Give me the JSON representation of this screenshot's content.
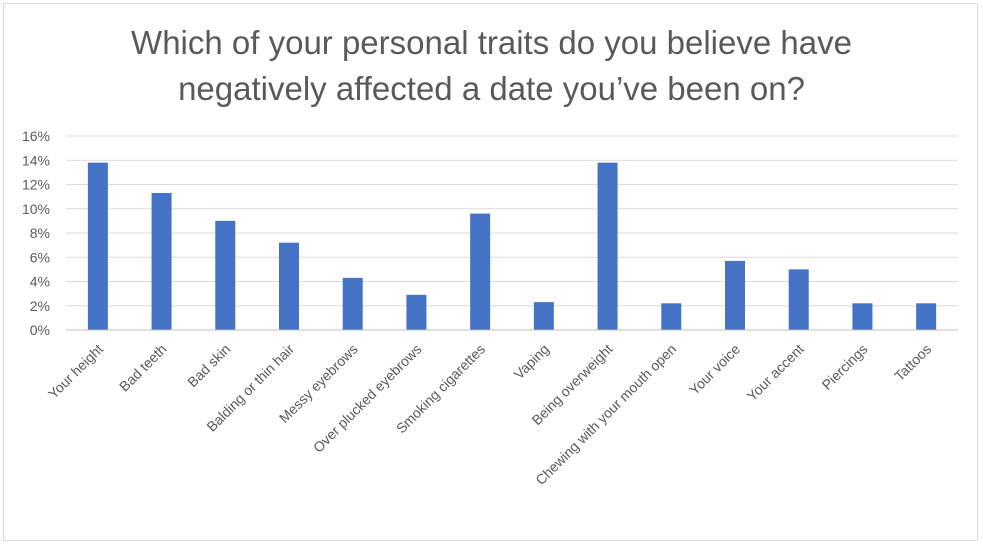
{
  "chart_data": {
    "type": "bar",
    "title_lines": [
      "Which of your personal traits do you believe have",
      "negatively affected a date you’ve been on?"
    ],
    "categories": [
      "Your height",
      "Bad teeth",
      "Bad skin",
      "Balding or thin hair",
      "Messy eyebrows",
      "Over plucked eyebrows",
      "Smoking cigarettes",
      "Vaping",
      "Being overweight",
      "Chewing with your mouth open",
      "Your voice",
      "Your accent",
      "Piercings",
      "Tattoos"
    ],
    "values": [
      0.138,
      0.113,
      0.09,
      0.072,
      0.043,
      0.029,
      0.096,
      0.023,
      0.138,
      0.022,
      0.057,
      0.05,
      0.022,
      0.022
    ],
    "ylim": [
      0,
      0.16
    ],
    "yticks": [
      0,
      0.02,
      0.04,
      0.06,
      0.08,
      0.1,
      0.12,
      0.14,
      0.16
    ],
    "ytick_labels": [
      "0%",
      "2%",
      "4%",
      "6%",
      "8%",
      "10%",
      "12%",
      "14%",
      "16%"
    ],
    "xlabel": "",
    "ylabel": "",
    "grid": true,
    "legend": "none",
    "bar_color": "#4472c4",
    "grid_color": "#d9d9d9"
  }
}
